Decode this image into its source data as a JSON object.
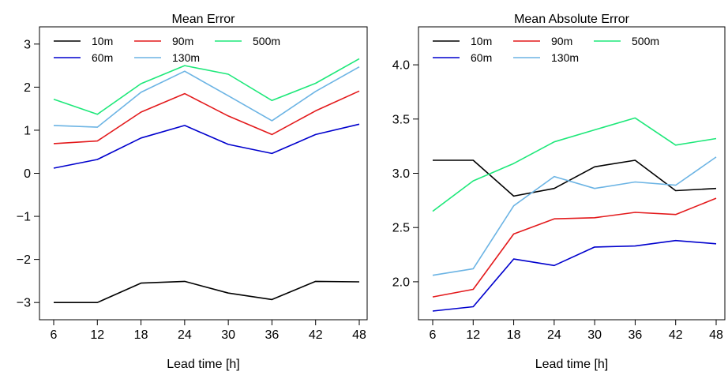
{
  "chart_data": [
    {
      "type": "line",
      "title": "Mean Error",
      "xlabel": "Lead time [h]",
      "ylabel": "",
      "x": [
        6,
        12,
        18,
        24,
        30,
        36,
        42,
        48
      ],
      "xticks": [
        "6",
        "12",
        "18",
        "24",
        "30",
        "36",
        "42",
        "48"
      ],
      "ylim": [
        -3.4,
        3.4
      ],
      "yticks": [
        -3,
        -2,
        -1,
        0,
        1,
        2,
        3
      ],
      "ytick_labels": [
        "−3",
        "−2",
        "−1",
        "0",
        "1",
        "2",
        "3"
      ],
      "grid": false,
      "legend_position": "top-left",
      "series": [
        {
          "name": "10m",
          "color": "#000000",
          "values": [
            -3.0,
            -3.0,
            -2.55,
            -2.51,
            -2.78,
            -2.93,
            -2.51,
            -2.52
          ]
        },
        {
          "name": "60m",
          "color": "#0000cd",
          "values": [
            0.12,
            0.32,
            0.82,
            1.11,
            0.67,
            0.46,
            0.9,
            1.14
          ]
        },
        {
          "name": "90m",
          "color": "#e31a1c",
          "values": [
            0.69,
            0.75,
            1.42,
            1.85,
            1.33,
            0.9,
            1.45,
            1.91
          ]
        },
        {
          "name": "130m",
          "color": "#6cb4e4",
          "values": [
            1.11,
            1.07,
            1.88,
            2.37,
            1.8,
            1.22,
            1.9,
            2.47
          ]
        },
        {
          "name": "500m",
          "color": "#1ee87a",
          "values": [
            1.72,
            1.37,
            2.08,
            2.5,
            2.3,
            1.69,
            2.09,
            2.66
          ]
        }
      ]
    },
    {
      "type": "line",
      "title": "Mean Absolute Error",
      "xlabel": "Lead time [h]",
      "ylabel": "",
      "x": [
        6,
        12,
        18,
        24,
        30,
        36,
        42,
        48
      ],
      "xticks": [
        "6",
        "12",
        "18",
        "24",
        "30",
        "36",
        "42",
        "48"
      ],
      "ylim": [
        1.65,
        4.35
      ],
      "yticks": [
        2.0,
        2.5,
        3.0,
        3.5,
        4.0
      ],
      "ytick_labels": [
        "2.0",
        "2.5",
        "3.0",
        "3.5",
        "4.0"
      ],
      "grid": false,
      "legend_position": "top-left",
      "series": [
        {
          "name": "10m",
          "color": "#000000",
          "values": [
            3.12,
            3.12,
            2.79,
            2.86,
            3.06,
            3.12,
            2.84,
            2.86
          ]
        },
        {
          "name": "60m",
          "color": "#0000cd",
          "values": [
            1.73,
            1.77,
            2.21,
            2.15,
            2.32,
            2.33,
            2.38,
            2.35
          ]
        },
        {
          "name": "90m",
          "color": "#e31a1c",
          "values": [
            1.86,
            1.93,
            2.44,
            2.58,
            2.59,
            2.64,
            2.62,
            2.77
          ]
        },
        {
          "name": "130m",
          "color": "#6cb4e4",
          "values": [
            2.06,
            2.12,
            2.7,
            2.97,
            2.86,
            2.92,
            2.89,
            3.15
          ]
        },
        {
          "name": "500m",
          "color": "#1ee87a",
          "values": [
            2.65,
            2.93,
            3.09,
            3.29,
            3.4,
            3.51,
            3.26,
            3.32
          ]
        }
      ]
    }
  ]
}
